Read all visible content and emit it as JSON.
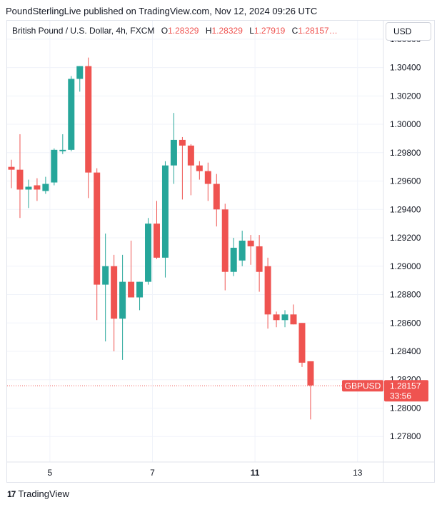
{
  "header": {
    "caption": "PoundSterlingLive published on TradingView.com, Nov 12, 2024 09:26 UTC"
  },
  "legend": {
    "instrument": "British Pound / U.S. Dollar, 4h, FXCM",
    "open_label": "O",
    "open_value": "1.28329",
    "high_label": "H",
    "high_value": "1.28329",
    "low_label": "L",
    "low_value": "1.27919",
    "close_label": "C",
    "close_value": "1.28157…"
  },
  "currency_selector": "USD",
  "footer": {
    "brand": "TradingView",
    "logo_text": "17"
  },
  "colors": {
    "up": "#26a69a",
    "down": "#ef5350",
    "grid": "#f0f3fa",
    "text": "#131722"
  },
  "chart_data": {
    "type": "candlestick",
    "symbol": "GBPUSD",
    "ylim": [
      1.2762,
      1.3073
    ],
    "y_ticks": [
      "1.30600",
      "1.30400",
      "1.30200",
      "1.30000",
      "1.29800",
      "1.29600",
      "1.29400",
      "1.29200",
      "1.29000",
      "1.28800",
      "1.28600",
      "1.28400",
      "1.28200",
      "1.28000",
      "1.27800"
    ],
    "y_tick_values": [
      1.306,
      1.304,
      1.302,
      1.3,
      1.298,
      1.296,
      1.294,
      1.292,
      1.29,
      1.288,
      1.286,
      1.284,
      1.282,
      1.28,
      1.278
    ],
    "x_ticks": [
      {
        "label": "5",
        "index": 4.5,
        "bold": false
      },
      {
        "label": "7",
        "index": 16.5,
        "bold": false
      },
      {
        "label": "11",
        "index": 28.5,
        "bold": true
      },
      {
        "label": "13",
        "index": 40.5,
        "bold": false
      }
    ],
    "last_price": {
      "label": "GBPUSD",
      "price": "1.28157",
      "countdown": "33:56",
      "value": 1.28157
    },
    "candles": [
      {
        "o": 1.297,
        "h": 1.2975,
        "l": 1.2955,
        "c": 1.2968
      },
      {
        "o": 1.2968,
        "h": 1.2993,
        "l": 1.2934,
        "c": 1.2954
      },
      {
        "o": 1.2954,
        "h": 1.2961,
        "l": 1.2941,
        "c": 1.2956
      },
      {
        "o": 1.2957,
        "h": 1.2962,
        "l": 1.2946,
        "c": 1.2954
      },
      {
        "o": 1.2953,
        "h": 1.2963,
        "l": 1.2951,
        "c": 1.2958
      },
      {
        "o": 1.2959,
        "h": 1.2983,
        "l": 1.2957,
        "c": 1.2982
      },
      {
        "o": 1.2981,
        "h": 1.2993,
        "l": 1.2979,
        "c": 1.2982
      },
      {
        "o": 1.2982,
        "h": 1.3034,
        "l": 1.2981,
        "c": 1.3032
      },
      {
        "o": 1.3032,
        "h": 1.3041,
        "l": 1.3023,
        "c": 1.3041
      },
      {
        "o": 1.3041,
        "h": 1.3047,
        "l": 1.2948,
        "c": 1.2966
      },
      {
        "o": 1.2966,
        "h": 1.2969,
        "l": 1.2862,
        "c": 1.2887
      },
      {
        "o": 1.2887,
        "h": 1.2923,
        "l": 1.2847,
        "c": 1.29
      },
      {
        "o": 1.29,
        "h": 1.2908,
        "l": 1.284,
        "c": 1.2863
      },
      {
        "o": 1.2863,
        "h": 1.2908,
        "l": 1.2834,
        "c": 1.2889
      },
      {
        "o": 1.2889,
        "h": 1.2918,
        "l": 1.2878,
        "c": 1.2878
      },
      {
        "o": 1.2878,
        "h": 1.2889,
        "l": 1.2869,
        "c": 1.2889
      },
      {
        "o": 1.2889,
        "h": 1.2934,
        "l": 1.2887,
        "c": 1.293
      },
      {
        "o": 1.293,
        "h": 1.2946,
        "l": 1.2905,
        "c": 1.2906
      },
      {
        "o": 1.2906,
        "h": 1.2974,
        "l": 1.2892,
        "c": 1.2971
      },
      {
        "o": 1.2971,
        "h": 1.3008,
        "l": 1.2958,
        "c": 1.2989
      },
      {
        "o": 1.2989,
        "h": 1.2991,
        "l": 1.2947,
        "c": 1.2985
      },
      {
        "o": 1.2985,
        "h": 1.2986,
        "l": 1.295,
        "c": 1.2971
      },
      {
        "o": 1.2971,
        "h": 1.2974,
        "l": 1.2961,
        "c": 1.2967
      },
      {
        "o": 1.2967,
        "h": 1.2973,
        "l": 1.2946,
        "c": 1.2958
      },
      {
        "o": 1.2958,
        "h": 1.2965,
        "l": 1.2928,
        "c": 1.294
      },
      {
        "o": 1.294,
        "h": 1.2944,
        "l": 1.2883,
        "c": 1.2896
      },
      {
        "o": 1.2896,
        "h": 1.292,
        "l": 1.2893,
        "c": 1.2913
      },
      {
        "o": 1.2904,
        "h": 1.2925,
        "l": 1.29,
        "c": 1.2918
      },
      {
        "o": 1.2918,
        "h": 1.2922,
        "l": 1.2901,
        "c": 1.2914
      },
      {
        "o": 1.2914,
        "h": 1.2922,
        "l": 1.2882,
        "c": 1.2896
      },
      {
        "o": 1.29,
        "h": 1.2906,
        "l": 1.2856,
        "c": 1.2866
      },
      {
        "o": 1.2866,
        "h": 1.2868,
        "l": 1.2857,
        "c": 1.2862
      },
      {
        "o": 1.2862,
        "h": 1.2869,
        "l": 1.2857,
        "c": 1.2866
      },
      {
        "o": 1.2866,
        "h": 1.2873,
        "l": 1.2859,
        "c": 1.2859
      },
      {
        "o": 1.286,
        "h": 1.286,
        "l": 1.2829,
        "c": 1.2832
      },
      {
        "o": 1.2833,
        "h": 1.2833,
        "l": 1.2792,
        "c": 1.2816
      }
    ]
  }
}
